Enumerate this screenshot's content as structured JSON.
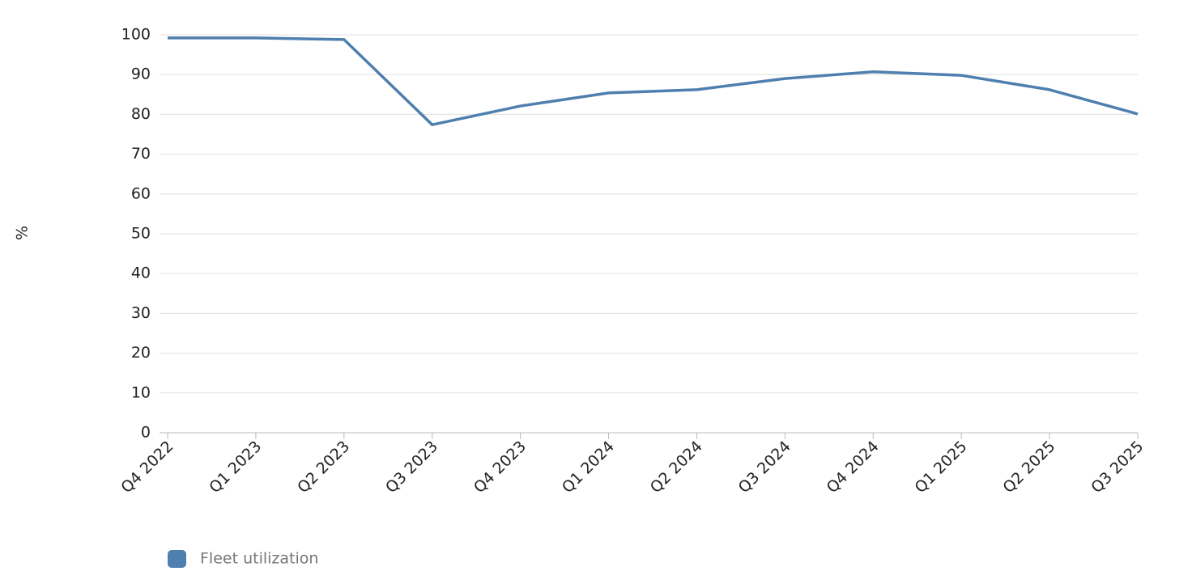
{
  "chart_data": {
    "type": "line",
    "y_label": "%",
    "categories": [
      "Q4 2022",
      "Q1 2023",
      "Q2 2023",
      "Q3 2023",
      "Q4 2023",
      "Q1 2024",
      "Q2 2024",
      "Q3 2024",
      "Q4 2024",
      "Q1 2025",
      "Q2 2025",
      "Q3 2025"
    ],
    "series": [
      {
        "name": "Fleet utilization",
        "color": "#4e7fae",
        "values": [
          99.2,
          99.2,
          98.8,
          77.4,
          82.1,
          85.4,
          86.2,
          89.0,
          90.7,
          89.8,
          86.2,
          80.1
        ]
      }
    ],
    "ylim": [
      0,
      100
    ],
    "yticks": [
      0,
      10,
      20,
      30,
      40,
      50,
      60,
      70,
      80,
      90,
      100
    ],
    "grid": true,
    "legend": "bottom"
  }
}
